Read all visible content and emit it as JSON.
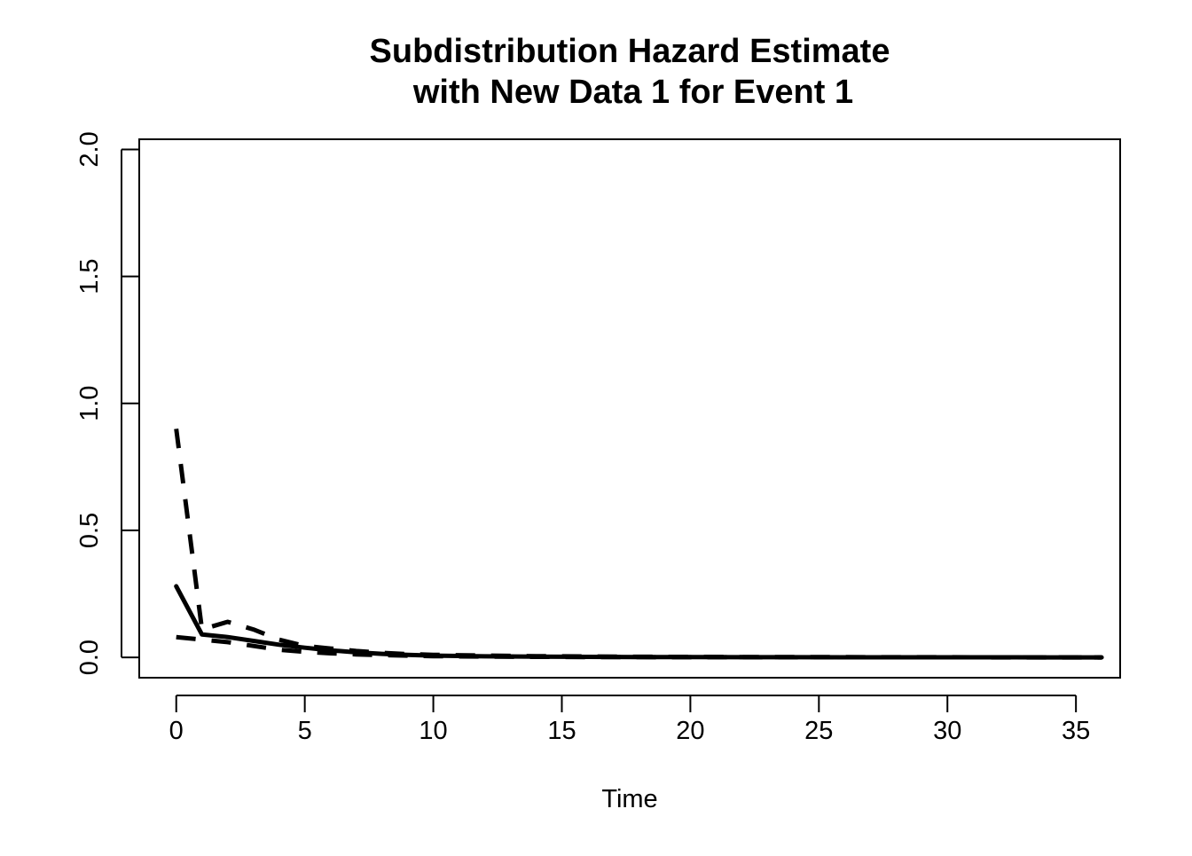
{
  "chart_data": {
    "type": "line",
    "title_lines": [
      "Subdistribution Hazard Estimate",
      "with New Data 1 for Event 1"
    ],
    "xlabel": "Time",
    "ylabel": "",
    "xlim": [
      -1.44,
      36.72
    ],
    "ylim": [
      -0.08,
      2.04
    ],
    "x_ticks": [
      0,
      5,
      10,
      15,
      20,
      25,
      30,
      35
    ],
    "y_ticks": [
      0.0,
      0.5,
      1.0,
      1.5,
      2.0
    ],
    "y_tick_labels": [
      "0.0",
      "0.5",
      "1.0",
      "1.5",
      "2.0"
    ],
    "grid": false,
    "legend": "none",
    "series": [
      {
        "style": "solid",
        "color": "#000000",
        "x": [
          0,
          1,
          2,
          3,
          4,
          5,
          6,
          7,
          8,
          9,
          10,
          12,
          14,
          16,
          18,
          20,
          22,
          24,
          26,
          28,
          30,
          32,
          34,
          36
        ],
        "y": [
          0.28,
          0.09,
          0.08,
          0.065,
          0.05,
          0.038,
          0.028,
          0.02,
          0.014,
          0.01,
          0.007,
          0.004,
          0.003,
          0.002,
          0.0015,
          0.001,
          0.0008,
          0.0006,
          0.0005,
          0.0004,
          0.0003,
          0.0002,
          0.0001,
          0.0
        ]
      },
      {
        "style": "dashed-upper",
        "color": "#000000",
        "x": [
          0,
          1,
          2,
          3,
          4,
          5,
          6,
          7,
          8,
          9,
          10,
          12,
          14,
          16,
          18,
          20,
          22,
          24,
          26,
          28,
          30,
          32,
          34,
          36
        ],
        "y": [
          0.9,
          0.11,
          0.14,
          0.11,
          0.07,
          0.045,
          0.035,
          0.025,
          0.018,
          0.013,
          0.01,
          0.007,
          0.005,
          0.0035,
          0.0025,
          0.002,
          0.0015,
          0.0012,
          0.001,
          0.0008,
          0.0006,
          0.0004,
          0.0002,
          0.0
        ]
      },
      {
        "style": "dashed-lower",
        "color": "#000000",
        "x": [
          0,
          1,
          2,
          3,
          4,
          5,
          6,
          7,
          8,
          9,
          10,
          12,
          14,
          16,
          18,
          20,
          22,
          24,
          26,
          28,
          30,
          32,
          34,
          36
        ],
        "y": [
          0.08,
          0.07,
          0.06,
          0.045,
          0.03,
          0.022,
          0.016,
          0.012,
          0.009,
          0.007,
          0.005,
          0.003,
          0.002,
          0.0015,
          0.001,
          0.0008,
          0.0006,
          0.0005,
          0.0004,
          0.0003,
          0.0002,
          0.0001,
          0.0,
          0.0
        ]
      }
    ]
  }
}
